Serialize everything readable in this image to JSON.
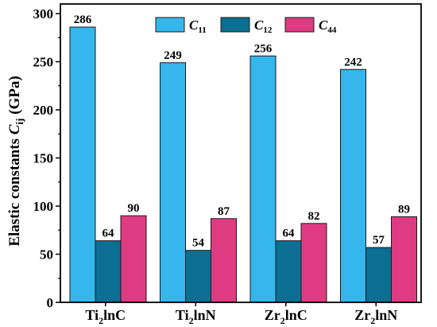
{
  "chart_data": {
    "type": "bar",
    "categories": [
      {
        "base": "Ti",
        "sub": "2",
        "rest": "lnC"
      },
      {
        "base": "Ti",
        "sub": "2",
        "rest": "lnN"
      },
      {
        "base": "Zr",
        "sub": "2",
        "rest": "lnC"
      },
      {
        "base": "Zr",
        "sub": "2",
        "rest": "lnN"
      }
    ],
    "series": [
      {
        "name": "C11",
        "label_main": "C",
        "label_sub": "11",
        "color": "#35b6ec",
        "values": [
          286,
          249,
          256,
          242
        ]
      },
      {
        "name": "C12",
        "label_main": "C",
        "label_sub": "12",
        "color": "#0b6e92",
        "values": [
          64,
          54,
          64,
          57
        ]
      },
      {
        "name": "C44",
        "label_main": "C",
        "label_sub": "44",
        "color": "#de3b83",
        "values": [
          90,
          87,
          82,
          89
        ]
      }
    ],
    "ylabel": {
      "prefix": "Elastic constants ",
      "var": "C",
      "sub": "ij",
      "suffix": " (GPa)"
    },
    "ylim": [
      0,
      310
    ],
    "yticks": [
      0,
      50,
      100,
      150,
      200,
      250,
      300
    ],
    "grid": false,
    "legend_position": "top-center"
  }
}
